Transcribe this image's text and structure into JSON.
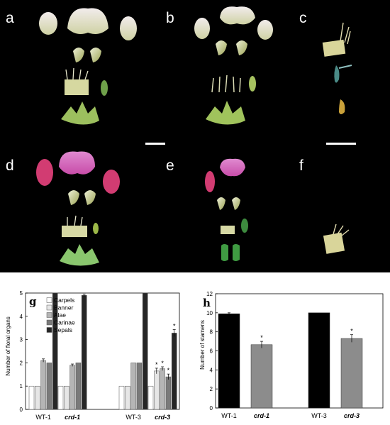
{
  "photo_panels": [
    "a",
    "b",
    "c",
    "d",
    "e",
    "f"
  ],
  "chart_data": [
    {
      "type": "bar",
      "panel": "g",
      "ylabel": "Number of floral organs",
      "ylim": [
        0,
        5
      ],
      "yticks": [
        0,
        1,
        2,
        3,
        4,
        5
      ],
      "categories": [
        "WT-1",
        "crd-1",
        "WT-3",
        "crd-3"
      ],
      "category_italic": [
        false,
        true,
        false,
        true
      ],
      "series": [
        {
          "name": "Carpels",
          "color": "#ffffff",
          "values": [
            1,
            1,
            1,
            1
          ],
          "errors": [
            0,
            0,
            0,
            0
          ],
          "stars": [
            "",
            "",
            "",
            ""
          ]
        },
        {
          "name": "Banner",
          "color": "#e6e6e6",
          "values": [
            1,
            1,
            1,
            1.65
          ],
          "errors": [
            0,
            0,
            0,
            0.12
          ],
          "stars": [
            "",
            "",
            "",
            "*"
          ]
        },
        {
          "name": "Alae",
          "color": "#b5b5b5",
          "values": [
            2.1,
            1.9,
            2,
            1.75
          ],
          "errors": [
            0.07,
            0.05,
            0,
            0.08
          ],
          "stars": [
            "",
            "",
            "",
            "*"
          ]
        },
        {
          "name": "Carinae",
          "color": "#7a7a7a",
          "values": [
            2,
            2,
            2,
            1.4
          ],
          "errors": [
            0,
            0,
            0,
            0.12
          ],
          "stars": [
            "",
            "",
            "",
            "*"
          ]
        },
        {
          "name": "Sepals",
          "color": "#262626",
          "values": [
            5,
            4.9,
            5,
            3.28
          ],
          "errors": [
            0,
            0.05,
            0,
            0.15
          ],
          "stars": [
            "",
            "",
            "",
            "*"
          ]
        }
      ],
      "legend_position": "top-left"
    },
    {
      "type": "bar",
      "panel": "h",
      "ylabel": "Number of stamens",
      "ylim": [
        0,
        12
      ],
      "yticks": [
        0,
        2,
        4,
        6,
        8,
        10,
        12
      ],
      "categories": [
        "WT-1",
        "crd-1",
        "WT-3",
        "crd-3"
      ],
      "category_italic": [
        false,
        true,
        false,
        true
      ],
      "values": [
        9.9,
        6.65,
        10,
        7.3
      ],
      "errors": [
        0.1,
        0.35,
        0,
        0.4
      ],
      "colors": [
        "#000000",
        "#8c8c8c",
        "#000000",
        "#8c8c8c"
      ],
      "stars": [
        "",
        "*",
        "",
        "*"
      ]
    }
  ]
}
